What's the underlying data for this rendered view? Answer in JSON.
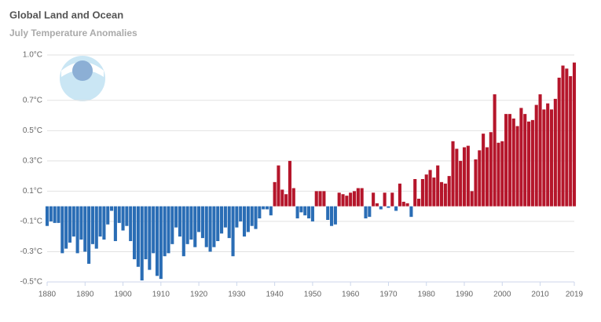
{
  "chart_data": {
    "type": "bar",
    "title": "Global Land and Ocean",
    "subtitle": "July Temperature Anomalies",
    "x": [
      1880,
      1881,
      1882,
      1883,
      1884,
      1885,
      1886,
      1887,
      1888,
      1889,
      1890,
      1891,
      1892,
      1893,
      1894,
      1895,
      1896,
      1897,
      1898,
      1899,
      1900,
      1901,
      1902,
      1903,
      1904,
      1905,
      1906,
      1907,
      1908,
      1909,
      1910,
      1911,
      1912,
      1913,
      1914,
      1915,
      1916,
      1917,
      1918,
      1919,
      1920,
      1921,
      1922,
      1923,
      1924,
      1925,
      1926,
      1927,
      1928,
      1929,
      1930,
      1931,
      1932,
      1933,
      1934,
      1935,
      1936,
      1937,
      1938,
      1939,
      1940,
      1941,
      1942,
      1943,
      1944,
      1945,
      1946,
      1947,
      1948,
      1949,
      1950,
      1951,
      1952,
      1953,
      1954,
      1955,
      1956,
      1957,
      1958,
      1959,
      1960,
      1961,
      1962,
      1963,
      1964,
      1965,
      1966,
      1967,
      1968,
      1969,
      1970,
      1971,
      1972,
      1973,
      1974,
      1975,
      1976,
      1977,
      1978,
      1979,
      1980,
      1981,
      1982,
      1983,
      1984,
      1985,
      1986,
      1987,
      1988,
      1989,
      1990,
      1991,
      1992,
      1993,
      1994,
      1995,
      1996,
      1997,
      1998,
      1999,
      2000,
      2001,
      2002,
      2003,
      2004,
      2005,
      2006,
      2007,
      2008,
      2009,
      2010,
      2011,
      2012,
      2013,
      2014,
      2015,
      2016,
      2017,
      2018,
      2019
    ],
    "values": [
      -0.13,
      -0.1,
      -0.11,
      -0.11,
      -0.31,
      -0.28,
      -0.24,
      -0.2,
      -0.31,
      -0.22,
      -0.3,
      -0.38,
      -0.25,
      -0.28,
      -0.2,
      -0.22,
      -0.12,
      -0.03,
      -0.23,
      -0.11,
      -0.16,
      -0.13,
      -0.23,
      -0.35,
      -0.4,
      -0.49,
      -0.35,
      -0.42,
      -0.31,
      -0.46,
      -0.48,
      -0.33,
      -0.31,
      -0.25,
      -0.14,
      -0.2,
      -0.33,
      -0.25,
      -0.22,
      -0.27,
      -0.17,
      -0.21,
      -0.27,
      -0.3,
      -0.27,
      -0.23,
      -0.18,
      -0.14,
      -0.21,
      -0.33,
      -0.14,
      -0.1,
      -0.2,
      -0.17,
      -0.13,
      -0.15,
      -0.08,
      -0.02,
      -0.02,
      -0.06,
      0.16,
      0.27,
      0.11,
      0.08,
      0.3,
      0.12,
      -0.08,
      -0.04,
      -0.06,
      -0.08,
      -0.1,
      0.1,
      0.1,
      0.1,
      -0.09,
      -0.13,
      -0.12,
      0.09,
      0.08,
      0.07,
      0.09,
      0.1,
      0.12,
      0.12,
      -0.08,
      -0.07,
      0.09,
      0.02,
      -0.02,
      0.09,
      -0.01,
      0.09,
      -0.03,
      0.15,
      0.03,
      0.02,
      -0.07,
      0.18,
      0.05,
      0.18,
      0.21,
      0.24,
      0.19,
      0.27,
      0.16,
      0.15,
      0.2,
      0.43,
      0.38,
      0.3,
      0.39,
      0.4,
      0.1,
      0.31,
      0.37,
      0.48,
      0.39,
      0.49,
      0.74,
      0.42,
      0.43,
      0.61,
      0.61,
      0.58,
      0.53,
      0.65,
      0.61,
      0.56,
      0.57,
      0.67,
      0.74,
      0.64,
      0.68,
      0.64,
      0.71,
      0.85,
      0.93,
      0.91,
      0.86,
      0.95
    ],
    "positive_color": "#b5162b",
    "negative_color": "#2a6db5",
    "xlim": [
      1880,
      2019
    ],
    "xticks": [
      1880,
      1890,
      1900,
      1910,
      1920,
      1930,
      1940,
      1950,
      1960,
      1970,
      1980,
      1990,
      2000,
      2010,
      2019
    ],
    "ylim": [
      -0.5,
      1.0
    ],
    "yticks": [
      {
        "value": -0.5,
        "label": "-0.5°C"
      },
      {
        "value": -0.3,
        "label": "-0.3°C"
      },
      {
        "value": -0.1,
        "label": "-0.1°C"
      },
      {
        "value": 0.1,
        "label": "0.1°C"
      },
      {
        "value": 0.3,
        "label": "0.3°C"
      },
      {
        "value": 0.5,
        "label": "0.5°C"
      },
      {
        "value": 0.7,
        "label": "0.7°C"
      },
      {
        "value": 1.0,
        "label": "1.0°C"
      }
    ],
    "grid": true
  }
}
